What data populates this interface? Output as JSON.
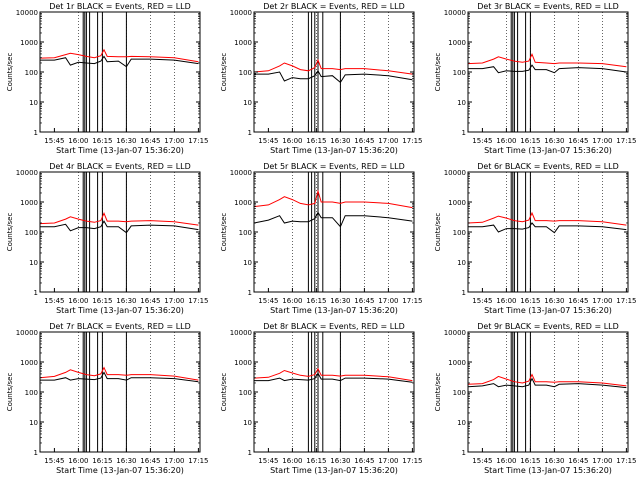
{
  "chart_data": [
    {
      "type": "line",
      "title": "Det 1r BLACK = Events, RED = LLD",
      "xlabel": "Start Time (13-Jan-07 15:36:20)",
      "ylabel": "Counts/sec",
      "yscale": "log",
      "ylim": [
        1,
        10000
      ],
      "xlim": [
        "15:36",
        "17:16"
      ],
      "x_ticks": [
        "15:45",
        "16:00",
        "16:15",
        "16:30",
        "16:45",
        "17:00",
        "17:15"
      ],
      "y_ticks": [
        "1",
        "10",
        "100",
        "1000",
        "10000"
      ],
      "grid": "dotted vertical at 16:00, 16:15, 16:30, 16:45, 17:00",
      "x": [
        "15:36",
        "15:45",
        "15:52",
        "15:55",
        "16:00",
        "16:05",
        "16:10",
        "16:14",
        "16:16",
        "16:18",
        "16:25",
        "16:30",
        "16:33",
        "16:45",
        "17:00",
        "17:15"
      ],
      "series": [
        {
          "name": "BLACK = Events",
          "color": "#000000",
          "values": [
            250,
            250,
            300,
            170,
            210,
            200,
            190,
            230,
            330,
            220,
            230,
            150,
            270,
            270,
            250,
            190
          ]
        },
        {
          "name": "RED = LLD",
          "color": "#ff0000",
          "values": [
            290,
            300,
            380,
            420,
            380,
            330,
            300,
            350,
            550,
            330,
            320,
            320,
            330,
            320,
            300,
            220
          ]
        }
      ],
      "vertical_markers": [
        "16:03",
        "16:04",
        "16:05",
        "16:07",
        "16:12",
        "16:15",
        "16:30"
      ]
    },
    {
      "type": "line",
      "title": "Det 2r BLACK = Events, RED = LLD",
      "xlabel": "Start Time (13-Jan-07 15:36:20)",
      "ylabel": "Counts/sec",
      "yscale": "log",
      "ylim": [
        1,
        10000
      ],
      "xlim": [
        "15:36",
        "17:16"
      ],
      "x_ticks": [
        "15:45",
        "16:00",
        "16:15",
        "16:30",
        "16:45",
        "17:00",
        "17:15"
      ],
      "y_ticks": [
        "1",
        "10",
        "100",
        "1000",
        "10000"
      ],
      "grid": "dotted vertical at 16:00, 16:15, 16:30, 16:45, 17:00",
      "x": [
        "15:36",
        "15:45",
        "15:52",
        "15:55",
        "16:00",
        "16:05",
        "16:10",
        "16:14",
        "16:16",
        "16:18",
        "16:25",
        "16:30",
        "16:33",
        "16:45",
        "17:00",
        "17:15"
      ],
      "series": [
        {
          "name": "BLACK = Events",
          "color": "#000000",
          "values": [
            85,
            85,
            100,
            50,
            65,
            60,
            60,
            75,
            110,
            70,
            75,
            45,
            80,
            85,
            75,
            55
          ]
        },
        {
          "name": "RED = LLD",
          "color": "#ff0000",
          "values": [
            100,
            110,
            160,
            200,
            160,
            120,
            110,
            140,
            250,
            130,
            130,
            120,
            130,
            130,
            110,
            85
          ]
        }
      ],
      "vertical_markers": [
        "16:10",
        "16:12",
        "16:14",
        "16:16",
        "16:19",
        "16:30"
      ]
    },
    {
      "type": "line",
      "title": "Det 3r BLACK = Events, RED = LLD",
      "xlabel": "Start Time (13-Jan-07 15:36:20)",
      "ylabel": "Counts/sec",
      "yscale": "log",
      "ylim": [
        1,
        10000
      ],
      "xlim": [
        "15:36",
        "17:16"
      ],
      "x_ticks": [
        "15:45",
        "16:00",
        "16:15",
        "16:30",
        "16:45",
        "17:00",
        "17:15"
      ],
      "y_ticks": [
        "1",
        "10",
        "100",
        "1000",
        "10000"
      ],
      "grid": "dotted vertical at 16:00, 16:15, 16:30, 16:45, 17:00",
      "x": [
        "15:36",
        "15:45",
        "15:52",
        "15:55",
        "16:00",
        "16:05",
        "16:10",
        "16:14",
        "16:16",
        "16:18",
        "16:25",
        "16:30",
        "16:33",
        "16:45",
        "17:00",
        "17:15"
      ],
      "series": [
        {
          "name": "BLACK = Events",
          "color": "#000000",
          "values": [
            130,
            130,
            150,
            95,
            110,
            105,
            105,
            115,
            170,
            120,
            120,
            95,
            130,
            140,
            130,
            100
          ]
        },
        {
          "name": "RED = LLD",
          "color": "#ff0000",
          "values": [
            190,
            200,
            270,
            320,
            270,
            230,
            210,
            230,
            390,
            210,
            200,
            190,
            200,
            200,
            190,
            150
          ]
        }
      ],
      "vertical_markers": [
        "16:03",
        "16:04",
        "16:05",
        "16:07",
        "16:12",
        "16:15"
      ]
    },
    {
      "type": "line",
      "title": "Det 4r BLACK = Events, RED = LLD",
      "xlabel": "Start Time (13-Jan-07 15:36:20)",
      "ylabel": "Counts/sec",
      "yscale": "log",
      "ylim": [
        1,
        10000
      ],
      "xlim": [
        "15:36",
        "17:16"
      ],
      "x_ticks": [
        "15:45",
        "16:00",
        "16:15",
        "16:30",
        "16:45",
        "17:00",
        "17:15"
      ],
      "y_ticks": [
        "1",
        "10",
        "100",
        "1000",
        "10000"
      ],
      "grid": "dotted vertical at 16:00, 16:15, 16:30, 16:45, 17:00",
      "x": [
        "15:36",
        "15:45",
        "15:52",
        "15:55",
        "16:00",
        "16:05",
        "16:10",
        "16:14",
        "16:16",
        "16:18",
        "16:25",
        "16:30",
        "16:33",
        "16:45",
        "17:00",
        "17:15"
      ],
      "series": [
        {
          "name": "BLACK = Events",
          "color": "#000000",
          "values": [
            150,
            150,
            180,
            110,
            140,
            140,
            130,
            150,
            230,
            150,
            150,
            95,
            160,
            170,
            160,
            120
          ]
        },
        {
          "name": "RED = LLD",
          "color": "#ff0000",
          "values": [
            190,
            200,
            270,
            320,
            270,
            230,
            210,
            240,
            420,
            230,
            230,
            220,
            230,
            240,
            220,
            170
          ]
        }
      ],
      "vertical_markers": [
        "16:03",
        "16:04",
        "16:05",
        "16:07",
        "16:12",
        "16:15",
        "16:30"
      ]
    },
    {
      "type": "line",
      "title": "Det 5r BLACK = Events, RED = LLD",
      "xlabel": "Start Time (13-Jan-07 15:36:20)",
      "ylabel": "Counts/sec",
      "yscale": "log",
      "ylim": [
        1,
        10000
      ],
      "xlim": [
        "15:36",
        "17:16"
      ],
      "x_ticks": [
        "15:45",
        "16:00",
        "16:15",
        "16:30",
        "16:45",
        "17:00",
        "17:15"
      ],
      "y_ticks": [
        "1",
        "10",
        "100",
        "1000",
        "10000"
      ],
      "grid": "dotted vertical at 16:00, 16:15, 16:30, 16:45, 17:00",
      "x": [
        "15:36",
        "15:45",
        "15:52",
        "15:55",
        "16:00",
        "16:05",
        "16:10",
        "16:14",
        "16:16",
        "16:18",
        "16:25",
        "16:30",
        "16:33",
        "16:45",
        "17:00",
        "17:15"
      ],
      "series": [
        {
          "name": "BLACK = Events",
          "color": "#000000",
          "values": [
            200,
            250,
            350,
            200,
            230,
            220,
            220,
            280,
            450,
            300,
            300,
            150,
            350,
            350,
            300,
            230
          ]
        },
        {
          "name": "RED = LLD",
          "color": "#ff0000",
          "values": [
            700,
            800,
            1200,
            1500,
            1200,
            900,
            800,
            900,
            2300,
            1000,
            1000,
            900,
            1000,
            1000,
            900,
            650
          ]
        }
      ],
      "vertical_markers": [
        "16:10",
        "16:12",
        "16:14",
        "16:16",
        "16:19",
        "16:30"
      ]
    },
    {
      "type": "line",
      "title": "Det 6r BLACK = Events, RED = LLD",
      "xlabel": "Start Time (13-Jan-07 15:36:20)",
      "ylabel": "Counts/sec",
      "yscale": "log",
      "ylim": [
        1,
        10000
      ],
      "xlim": [
        "15:36",
        "17:16"
      ],
      "x_ticks": [
        "15:45",
        "16:00",
        "16:15",
        "16:30",
        "16:45",
        "17:00",
        "17:15"
      ],
      "y_ticks": [
        "1",
        "10",
        "100",
        "1000",
        "10000"
      ],
      "grid": "dotted vertical at 16:00, 16:15, 16:30, 16:45, 17:00",
      "x": [
        "15:36",
        "15:45",
        "15:52",
        "15:55",
        "16:00",
        "16:05",
        "16:10",
        "16:14",
        "16:16",
        "16:18",
        "16:25",
        "16:30",
        "16:33",
        "16:45",
        "17:00",
        "17:15"
      ],
      "series": [
        {
          "name": "BLACK = Events",
          "color": "#000000",
          "values": [
            150,
            150,
            170,
            100,
            130,
            130,
            125,
            140,
            200,
            150,
            150,
            95,
            160,
            160,
            150,
            120
          ]
        },
        {
          "name": "RED = LLD",
          "color": "#ff0000",
          "values": [
            200,
            210,
            290,
            340,
            290,
            240,
            220,
            250,
            430,
            240,
            240,
            230,
            240,
            240,
            220,
            170
          ]
        }
      ],
      "vertical_markers": [
        "16:03",
        "16:04",
        "16:05",
        "16:07",
        "16:12",
        "16:15"
      ]
    },
    {
      "type": "line",
      "title": "Det 7r BLACK = Events, RED = LLD",
      "xlabel": "Start Time (13-Jan-07 15:36:20)",
      "ylabel": "Counts/sec",
      "yscale": "log",
      "ylim": [
        1,
        10000
      ],
      "xlim": [
        "15:36",
        "17:16"
      ],
      "x_ticks": [
        "15:45",
        "16:00",
        "16:15",
        "16:30",
        "16:45",
        "17:00",
        "17:15"
      ],
      "y_ticks": [
        "1",
        "10",
        "100",
        "1000",
        "10000"
      ],
      "grid": "dotted vertical at 16:00, 16:15, 16:30, 16:45, 17:00",
      "x": [
        "15:36",
        "15:45",
        "15:52",
        "15:55",
        "16:00",
        "16:05",
        "16:10",
        "16:14",
        "16:16",
        "16:18",
        "16:25",
        "16:30",
        "16:33",
        "16:45",
        "17:00",
        "17:15"
      ],
      "series": [
        {
          "name": "BLACK = Events",
          "color": "#000000",
          "values": [
            250,
            250,
            300,
            250,
            280,
            270,
            260,
            290,
            450,
            280,
            280,
            250,
            300,
            300,
            280,
            220
          ]
        },
        {
          "name": "RED = LLD",
          "color": "#ff0000",
          "values": [
            300,
            330,
            450,
            550,
            450,
            380,
            350,
            400,
            650,
            380,
            380,
            360,
            380,
            380,
            340,
            250
          ]
        }
      ],
      "vertical_markers": [
        "16:03",
        "16:04",
        "16:05",
        "16:07",
        "16:12",
        "16:15",
        "16:30"
      ]
    },
    {
      "type": "line",
      "title": "Det 8r BLACK = Events, RED = LLD",
      "xlabel": "Start Time (13-Jan-07 15:36:20)",
      "ylabel": "Counts/sec",
      "yscale": "log",
      "ylim": [
        1,
        10000
      ],
      "xlim": [
        "15:36",
        "17:16"
      ],
      "x_ticks": [
        "15:45",
        "16:00",
        "16:15",
        "16:30",
        "16:45",
        "17:00",
        "17:15"
      ],
      "y_ticks": [
        "1",
        "10",
        "100",
        "1000",
        "10000"
      ],
      "grid": "dotted vertical at 16:00, 16:15, 16:30, 16:45, 17:00",
      "x": [
        "15:36",
        "15:45",
        "15:52",
        "15:55",
        "16:00",
        "16:05",
        "16:10",
        "16:14",
        "16:16",
        "16:18",
        "16:25",
        "16:30",
        "16:33",
        "16:45",
        "17:00",
        "17:15"
      ],
      "series": [
        {
          "name": "BLACK = Events",
          "color": "#000000",
          "values": [
            240,
            240,
            290,
            240,
            270,
            260,
            250,
            280,
            420,
            270,
            270,
            240,
            290,
            290,
            270,
            210
          ]
        },
        {
          "name": "RED = LLD",
          "color": "#ff0000",
          "values": [
            290,
            310,
            420,
            520,
            430,
            360,
            330,
            380,
            600,
            360,
            360,
            340,
            360,
            360,
            320,
            240
          ]
        }
      ],
      "vertical_markers": [
        "16:10",
        "16:12",
        "16:14",
        "16:16",
        "16:19",
        "16:30"
      ]
    },
    {
      "type": "line",
      "title": "Det 9r BLACK = Events, RED = LLD",
      "xlabel": "Start Time (13-Jan-07 15:36:20)",
      "ylabel": "Counts/sec",
      "yscale": "log",
      "ylim": [
        1,
        10000
      ],
      "xlim": [
        "15:36",
        "17:16"
      ],
      "x_ticks": [
        "15:45",
        "16:00",
        "16:15",
        "16:30",
        "16:45",
        "17:00",
        "17:15"
      ],
      "y_ticks": [
        "1",
        "10",
        "100",
        "1000",
        "10000"
      ],
      "grid": "dotted vertical at 16:00, 16:15, 16:30, 16:45, 17:00",
      "x": [
        "15:36",
        "15:45",
        "15:52",
        "15:55",
        "16:00",
        "16:05",
        "16:10",
        "16:14",
        "16:16",
        "16:18",
        "16:25",
        "16:30",
        "16:33",
        "16:45",
        "17:00",
        "17:15"
      ],
      "series": [
        {
          "name": "BLACK = Events",
          "color": "#000000",
          "values": [
            150,
            160,
            190,
            150,
            170,
            160,
            150,
            170,
            280,
            170,
            170,
            150,
            180,
            190,
            170,
            140
          ]
        },
        {
          "name": "RED = LLD",
          "color": "#ff0000",
          "values": [
            180,
            190,
            260,
            330,
            270,
            220,
            200,
            230,
            380,
            220,
            220,
            210,
            220,
            220,
            200,
            160
          ]
        }
      ],
      "vertical_markers": [
        "16:03",
        "16:04",
        "16:05",
        "16:07",
        "16:12",
        "16:15"
      ]
    }
  ]
}
